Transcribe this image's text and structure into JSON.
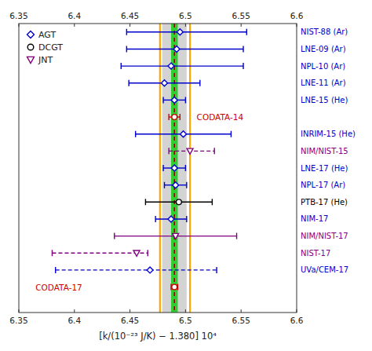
{
  "chart_data": {
    "type": "errorbar",
    "orientation": "horizontal",
    "x_label": "[k/(10⁻²³ J/K) − 1.380]  10⁴",
    "categories": [
      "NIST-88 (Ar)",
      "LNE-09 (Ar)",
      "NPL-10 (Ar)",
      "LNE-11 (Ar)",
      "LNE-15 (He)",
      null,
      "INRIM-15 (He)",
      "NIM/NIST-15",
      "LNE-17 (He)",
      "NPL-17 (Ar)",
      "PTB-17 (He)",
      "NIM-17",
      "NIM/NIST-17",
      "NIST-17",
      "UVa/CEM-17",
      null
    ],
    "xlim": [
      6.35,
      6.6
    ],
    "xticks": [
      6.35,
      6.4,
      6.45,
      6.5,
      6.55,
      6.6
    ],
    "grid": false,
    "legend": "upper left",
    "series": [
      {
        "name": "AGT",
        "color": "#0000cc",
        "marker": "diamond",
        "line_style": "solid",
        "values": [
          6.495,
          6.492,
          6.487,
          6.481,
          6.49,
          null,
          6.498,
          null,
          6.49,
          6.491,
          null,
          6.487,
          null,
          null,
          null,
          null
        ],
        "error_minus": [
          0.048,
          0.045,
          0.045,
          0.032,
          0.01,
          null,
          0.043,
          null,
          0.01,
          0.01,
          null,
          0.014,
          null,
          null,
          null,
          null
        ],
        "error_plus": [
          0.06,
          0.06,
          0.065,
          0.032,
          0.01,
          null,
          0.043,
          null,
          0.01,
          0.01,
          null,
          0.014,
          null,
          null,
          null,
          null
        ]
      },
      {
        "name": "DCGT",
        "color": "#000000",
        "marker": "circle",
        "line_style": "solid",
        "values": [
          null,
          null,
          null,
          null,
          null,
          null,
          null,
          null,
          null,
          null,
          6.494,
          null,
          null,
          null,
          null,
          null
        ],
        "error_minus": [
          null,
          null,
          null,
          null,
          null,
          null,
          null,
          null,
          null,
          null,
          0.03,
          null,
          null,
          null,
          null,
          null
        ],
        "error_plus": [
          null,
          null,
          null,
          null,
          null,
          null,
          null,
          null,
          null,
          null,
          0.03,
          null,
          null,
          null,
          null,
          null
        ]
      },
      {
        "name": "JNT",
        "color": "#800080",
        "marker": "triangle-down",
        "line_style": "solid",
        "values": [
          null,
          null,
          null,
          null,
          null,
          null,
          null,
          null,
          null,
          null,
          null,
          null,
          6.491,
          null,
          null,
          null
        ],
        "error_minus": [
          null,
          null,
          null,
          null,
          null,
          null,
          null,
          null,
          null,
          null,
          null,
          null,
          0.055,
          null,
          null,
          null
        ],
        "error_plus": [
          null,
          null,
          null,
          null,
          null,
          null,
          null,
          null,
          null,
          null,
          null,
          null,
          0.055,
          null,
          null,
          null
        ]
      },
      {
        "color": "#0000cc",
        "marker": "diamond",
        "line_style": "dashed",
        "values": [
          null,
          null,
          null,
          null,
          null,
          null,
          null,
          null,
          null,
          null,
          null,
          null,
          null,
          null,
          6.468,
          null
        ],
        "error_minus": [
          null,
          null,
          null,
          null,
          null,
          null,
          null,
          null,
          null,
          null,
          null,
          null,
          null,
          null,
          0.085,
          null
        ],
        "error_plus": [
          null,
          null,
          null,
          null,
          null,
          null,
          null,
          null,
          null,
          null,
          null,
          null,
          null,
          null,
          0.06,
          null
        ]
      },
      {
        "color": "#800080",
        "marker": "triangle-down",
        "line_style": "dashed",
        "values": [
          null,
          null,
          null,
          null,
          null,
          null,
          null,
          6.504,
          null,
          null,
          null,
          null,
          null,
          6.456,
          null,
          null
        ],
        "error_minus": [
          null,
          null,
          null,
          null,
          null,
          null,
          null,
          0.019,
          null,
          null,
          null,
          null,
          null,
          0.076,
          null,
          null
        ],
        "error_plus": [
          null,
          null,
          null,
          null,
          null,
          null,
          null,
          0.022,
          null,
          null,
          null,
          null,
          null,
          0.01,
          null,
          null
        ]
      },
      {
        "color": "#cc0000",
        "marker": "circle",
        "line_style": "solid",
        "values": [
          null,
          null,
          null,
          null,
          null,
          6.49,
          null,
          null,
          null,
          null,
          null,
          null,
          null,
          null,
          null,
          6.49
        ],
        "error_minus": [
          null,
          null,
          null,
          null,
          null,
          0.005,
          null,
          null,
          null,
          null,
          null,
          null,
          null,
          null,
          null,
          0.003
        ],
        "error_plus": [
          null,
          null,
          null,
          null,
          null,
          0.005,
          null,
          null,
          null,
          null,
          null,
          null,
          null,
          null,
          null,
          0.003
        ]
      }
    ],
    "bands": [
      {
        "center": 6.49,
        "half_width": 0.011,
        "color": "lightgray"
      },
      {
        "center": 6.49,
        "half_width": 0.003,
        "color": "limegreen"
      }
    ],
    "vlines": [
      {
        "x": 6.477,
        "color": "orange",
        "line_style": "solid"
      },
      {
        "x": 6.504,
        "color": "orange",
        "line_style": "solid"
      },
      {
        "x": 6.49,
        "color": "darkred",
        "line_style": "dashed"
      }
    ],
    "annotations": [
      {
        "text": "CODATA-14",
        "x": 6.51,
        "row": 6,
        "color": "#cc0000"
      },
      {
        "text": "CODATA-17",
        "x": 6.365,
        "row": 16,
        "color": "#cc0000"
      }
    ]
  }
}
